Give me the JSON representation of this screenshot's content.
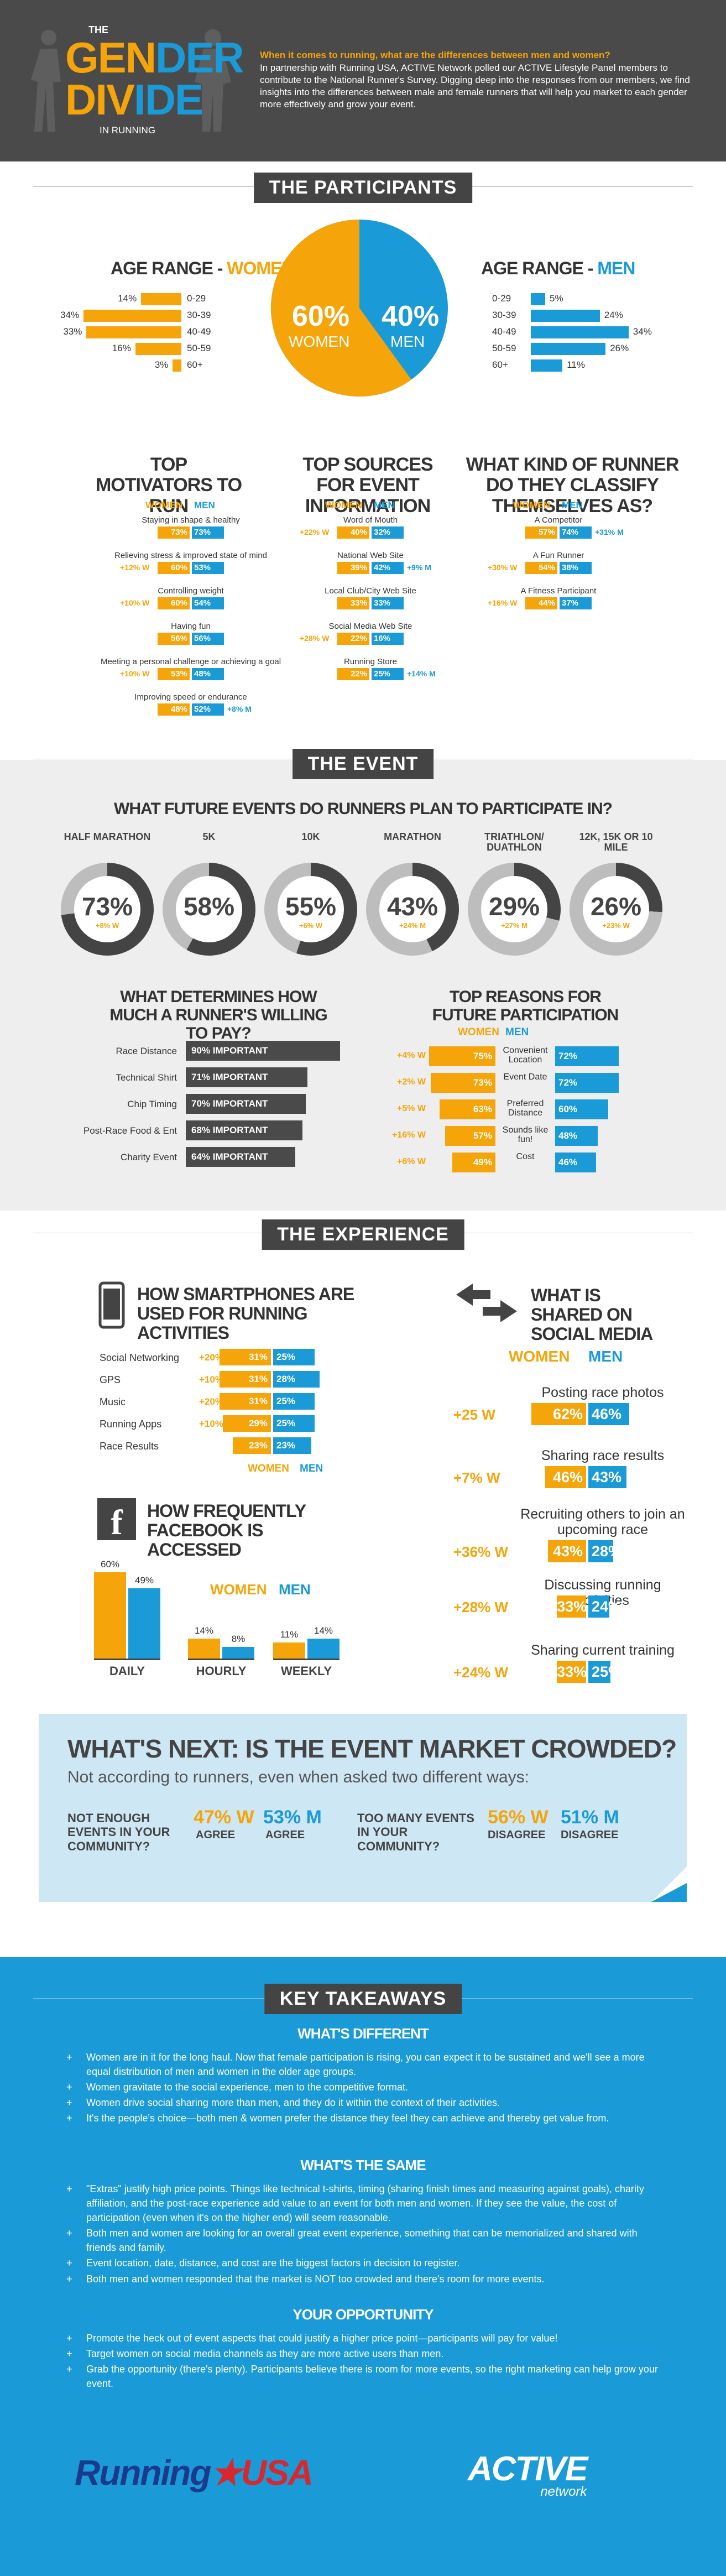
{
  "header": {
    "title_the": "THE",
    "title_gen": "GEN",
    "title_der": "DER",
    "title_div": "DIV",
    "title_ide": "IDE",
    "subtitle": "IN RUNNING",
    "intro_q": "When it comes to running, what are the differences between men and women?",
    "intro_body": "In partnership with Running USA, ACTIVE Network polled our ACTIVE Lifestyle Panel members to contribute to the National Runner's Survey. Digging deep into the responses from our members, we find insights into the differences between male and female runners that will help you market to each gender more effectively and grow your event."
  },
  "participants": {
    "banner": "THE PARTICIPANTS",
    "age_women_title_a": "AGE RANGE - ",
    "age_women_title_b": "WOMEN",
    "age_men_title_a": "AGE RANGE - ",
    "age_men_title_b": "MEN",
    "age_labels": [
      "0-29",
      "30-39",
      "40-49",
      "50-59",
      "60+"
    ],
    "age_women": [
      "14%",
      "34%",
      "33%",
      "16%",
      "3%"
    ],
    "age_women_v": [
      14,
      34,
      33,
      16,
      3
    ],
    "age_men": [
      "5%",
      "24%",
      "34%",
      "26%",
      "11%"
    ],
    "age_men_v": [
      5,
      24,
      34,
      26,
      11
    ],
    "pie_women_pct": "60%",
    "pie_women_lbl": "WOMEN",
    "pie_men_pct": "40%",
    "pie_men_lbl": "MEN",
    "pie_women_value": 60,
    "motivators_title": "TOP MOTIVATORS TO RUN",
    "sources_title": "TOP SOURCES FOR EVENT INFORMATION",
    "runner_title": "WHAT KIND OF RUNNER DO THEY CLASSIFY THEMSELVES AS?",
    "women": "WOMEN",
    "men": "MEN",
    "motivators": [
      {
        "label": "Staying in shape & healthy",
        "w": "73%",
        "m": "73%",
        "left": "",
        "right": ""
      },
      {
        "label": "Relieving stress & improved state of mind",
        "w": "60%",
        "m": "53%",
        "left": "+12% W",
        "right": ""
      },
      {
        "label": "Controlling weight",
        "w": "60%",
        "m": "54%",
        "left": "+10% W",
        "right": ""
      },
      {
        "label": "Having fun",
        "w": "56%",
        "m": "56%",
        "left": "",
        "right": ""
      },
      {
        "label": "Meeting a personal challenge or achieving a goal",
        "w": "53%",
        "m": "48%",
        "left": "+10% W",
        "right": ""
      },
      {
        "label": "Improving speed or endurance",
        "w": "48%",
        "m": "52%",
        "left": "",
        "right": "+8% M"
      }
    ],
    "sources": [
      {
        "label": "Word of Mouth",
        "w": "40%",
        "m": "32%",
        "left": "+22% W",
        "right": ""
      },
      {
        "label": "National Web Site",
        "w": "39%",
        "m": "42%",
        "left": "",
        "right": "+9% M"
      },
      {
        "label": "Local Club/City Web Site",
        "w": "33%",
        "m": "33%",
        "left": "",
        "right": ""
      },
      {
        "label": "Social Media Web Site",
        "w": "22%",
        "m": "16%",
        "left": "+28% W",
        "right": ""
      },
      {
        "label": "Running Store",
        "w": "22%",
        "m": "25%",
        "left": "",
        "right": "+14% M"
      }
    ],
    "runner": [
      {
        "label": "A Competitor",
        "w": "57%",
        "m": "74%",
        "left": "",
        "right": "+31% M"
      },
      {
        "label": "A Fun Runner",
        "w": "54%",
        "m": "38%",
        "left": "+30% W",
        "right": ""
      },
      {
        "label": "A Fitness Participant",
        "w": "44%",
        "m": "37%",
        "left": "+16% W",
        "right": ""
      }
    ]
  },
  "event": {
    "banner": "THE EVENT",
    "future_title": "WHAT FUTURE EVENTS DO RUNNERS PLAN TO PARTICIPATE IN?",
    "future": [
      {
        "name": "HALF MARATHON",
        "pct": "73%",
        "chg": "+8% W",
        "v": 73
      },
      {
        "name": "5K",
        "pct": "58%",
        "chg": "",
        "v": 58
      },
      {
        "name": "10K",
        "pct": "55%",
        "chg": "+6% W",
        "v": 55
      },
      {
        "name": "MARATHON",
        "pct": "43%",
        "chg": "+24% M",
        "v": 43
      },
      {
        "name": "TRIATHLON/ DUATHLON",
        "pct": "29%",
        "chg": "+27% M",
        "v": 29
      },
      {
        "name": "12K, 15K OR 10 MILE",
        "pct": "26%",
        "chg": "+23% W",
        "v": 26
      }
    ],
    "pay_title": "WHAT DETERMINES HOW MUCH A RUNNER'S WILLING TO PAY?",
    "pay": [
      {
        "label": "Race Distance",
        "val": "90% IMPORTANT",
        "v": 90
      },
      {
        "label": "Technical Shirt",
        "val": "71% IMPORTANT",
        "v": 71
      },
      {
        "label": "Chip Timing",
        "val": "70% IMPORTANT",
        "v": 70
      },
      {
        "label": "Post-Race Food & Ent",
        "val": "68% IMPORTANT",
        "v": 68
      },
      {
        "label": "Charity Event",
        "val": "64% IMPORTANT",
        "v": 64
      }
    ],
    "reasons_title": "TOP REASONS FOR FUTURE PARTICIPATION",
    "reasons": [
      {
        "label": "Convenient Location",
        "w": "75%",
        "m": "72%",
        "left": "+4% W"
      },
      {
        "label": "Event Date",
        "w": "73%",
        "m": "72%",
        "left": "+2% W"
      },
      {
        "label": "Preferred Distance",
        "w": "63%",
        "m": "60%",
        "left": "+5% W"
      },
      {
        "label": "Sounds like fun!",
        "w": "57%",
        "m": "48%",
        "left": "+16% W"
      },
      {
        "label": "Cost",
        "w": "49%",
        "m": "46%",
        "left": "+6% W"
      }
    ]
  },
  "experience": {
    "banner": "THE EXPERIENCE",
    "smart_title": "HOW SMARTPHONES ARE USED FOR RUNNING ACTIVITIES",
    "smart": [
      {
        "label": "Social Networking",
        "w": "31%",
        "m": "25%",
        "left": "+20% W"
      },
      {
        "label": "GPS",
        "w": "31%",
        "m": "28%",
        "left": "+10% W"
      },
      {
        "label": "Music",
        "w": "31%",
        "m": "25%",
        "left": "+20% W"
      },
      {
        "label": "Running Apps",
        "w": "29%",
        "m": "25%",
        "left": "+10% W"
      },
      {
        "label": "Race Results",
        "w": "23%",
        "m": "23%",
        "left": ""
      }
    ],
    "fb_title": "HOW FREQUENTLY FACEBOOK IS ACCESSED",
    "fb": [
      {
        "name": "DAILY",
        "w": "60%",
        "m": "49%",
        "wv": 60,
        "mv": 49
      },
      {
        "name": "HOURLY",
        "w": "14%",
        "m": "8%",
        "wv": 14,
        "mv": 8
      },
      {
        "name": "WEEKLY",
        "w": "11%",
        "m": "14%",
        "wv": 11,
        "mv": 14
      }
    ],
    "social_title": "WHAT IS SHARED ON SOCIAL MEDIA",
    "social": [
      {
        "label": "Posting race photos",
        "w": "62%",
        "m": "46%",
        "left": "+25 W"
      },
      {
        "label": "Sharing race results",
        "w": "46%",
        "m": "43%",
        "left": "+7% W"
      },
      {
        "label": "Recruiting others to join an upcoming race",
        "w": "43%",
        "m": "28%",
        "left": "+36% W"
      },
      {
        "label": "Discussing running activities",
        "w": "33%",
        "m": "24%",
        "left": "+28% W"
      },
      {
        "label": "Sharing current training",
        "w": "33%",
        "m": "25%",
        "left": "+24% W"
      }
    ]
  },
  "next": {
    "title": "WHAT'S NEXT: IS THE EVENT MARKET CROWDED?",
    "sub": "Not according to runners, even when asked two different ways:",
    "q1": "NOT ENOUGH EVENTS IN YOUR COMMUNITY?",
    "q1_w": "47% W",
    "q1_wl": "AGREE",
    "q1_m": "53% M",
    "q1_ml": "AGREE",
    "q2": "TOO MANY EVENTS IN YOUR COMMUNITY?",
    "q2_w": "56% W",
    "q2_wl": "DISAGREE",
    "q2_m": "51% M",
    "q2_ml": "DISAGREE"
  },
  "takeaways": {
    "banner": "KEY TAKEAWAYS",
    "diff_title": "WHAT'S DIFFERENT",
    "diff": [
      "Women are in it for the long haul. Now that female participation is rising, you can expect it to be sustained and we'll see a more equal distribution of men and women in the older age groups.",
      "Women gravitate to the social experience, men to the competitive format.",
      "Women drive social sharing more than men, and they do it within the context of their activities.",
      "It's the people's choice—both men & women prefer the distance they feel they can achieve and thereby get value from."
    ],
    "same_title": "WHAT'S THE SAME",
    "same": [
      "\"Extras\" justify high price points. Things like technical t-shirts, timing (sharing finish times and measuring against goals), charity affiliation, and the post-race experience add value to an event for both men and women. If they see the value, the cost of participation (even when it's on the higher end) will seem reasonable.",
      "Both men and women are looking for an overall great event experience, something that can be memorialized and shared with friends and family.",
      "Event location, date, distance, and cost are the biggest factors in decision to register.",
      "Both men and women responded that the market is NOT too crowded and there's room for more events."
    ],
    "opp_title": "YOUR OPPORTUNITY",
    "opp": [
      "Promote the heck out of event aspects that could justify a higher price point—participants will pay for value!",
      "Target women on social media channels as they are more active users than men.",
      "Grab the opportunity (there's plenty). Participants believe there is room for more events, so the right marketing can help grow your event."
    ],
    "logo_ru_a": "Running",
    "logo_ru_b": "USA",
    "logo_active": "ACTIVE",
    "logo_network": "network"
  },
  "colors": {
    "women": "#F5A50A",
    "men": "#1A9AD6",
    "dark": "#444444"
  }
}
